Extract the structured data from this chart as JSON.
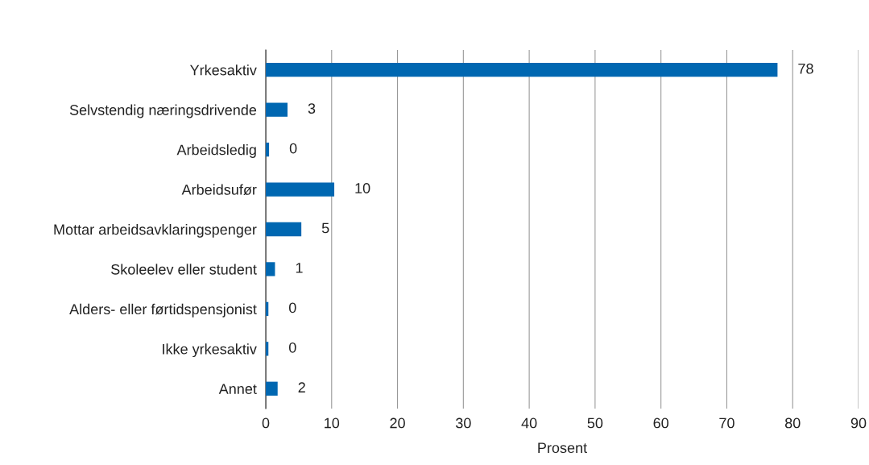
{
  "chart_data": {
    "type": "bar",
    "orientation": "horizontal",
    "xlabel": "Prosent",
    "categories": [
      "Yrkesaktiv",
      "Selvstendig næringsdrivende",
      "Arbeidsledig",
      "Arbeidsufør",
      "Mottar arbeidsavklaringspenger",
      "Skoleelev eller student",
      "Alders- eller førtidspensjonist",
      "Ikke yrkesaktiv",
      "Annet"
    ],
    "values": [
      77.7,
      3.3,
      0.5,
      10.4,
      5.4,
      1.4,
      0.4,
      0.4,
      1.8
    ],
    "value_labels": [
      "78",
      "3",
      "0",
      "10",
      "5",
      "1",
      "0",
      "0",
      "2"
    ],
    "color": "#0067b1",
    "xlim": [
      0,
      90
    ],
    "xticks": [
      0,
      10,
      20,
      30,
      40,
      50,
      60,
      70,
      80,
      90
    ],
    "grid": "x",
    "legend": false
  }
}
